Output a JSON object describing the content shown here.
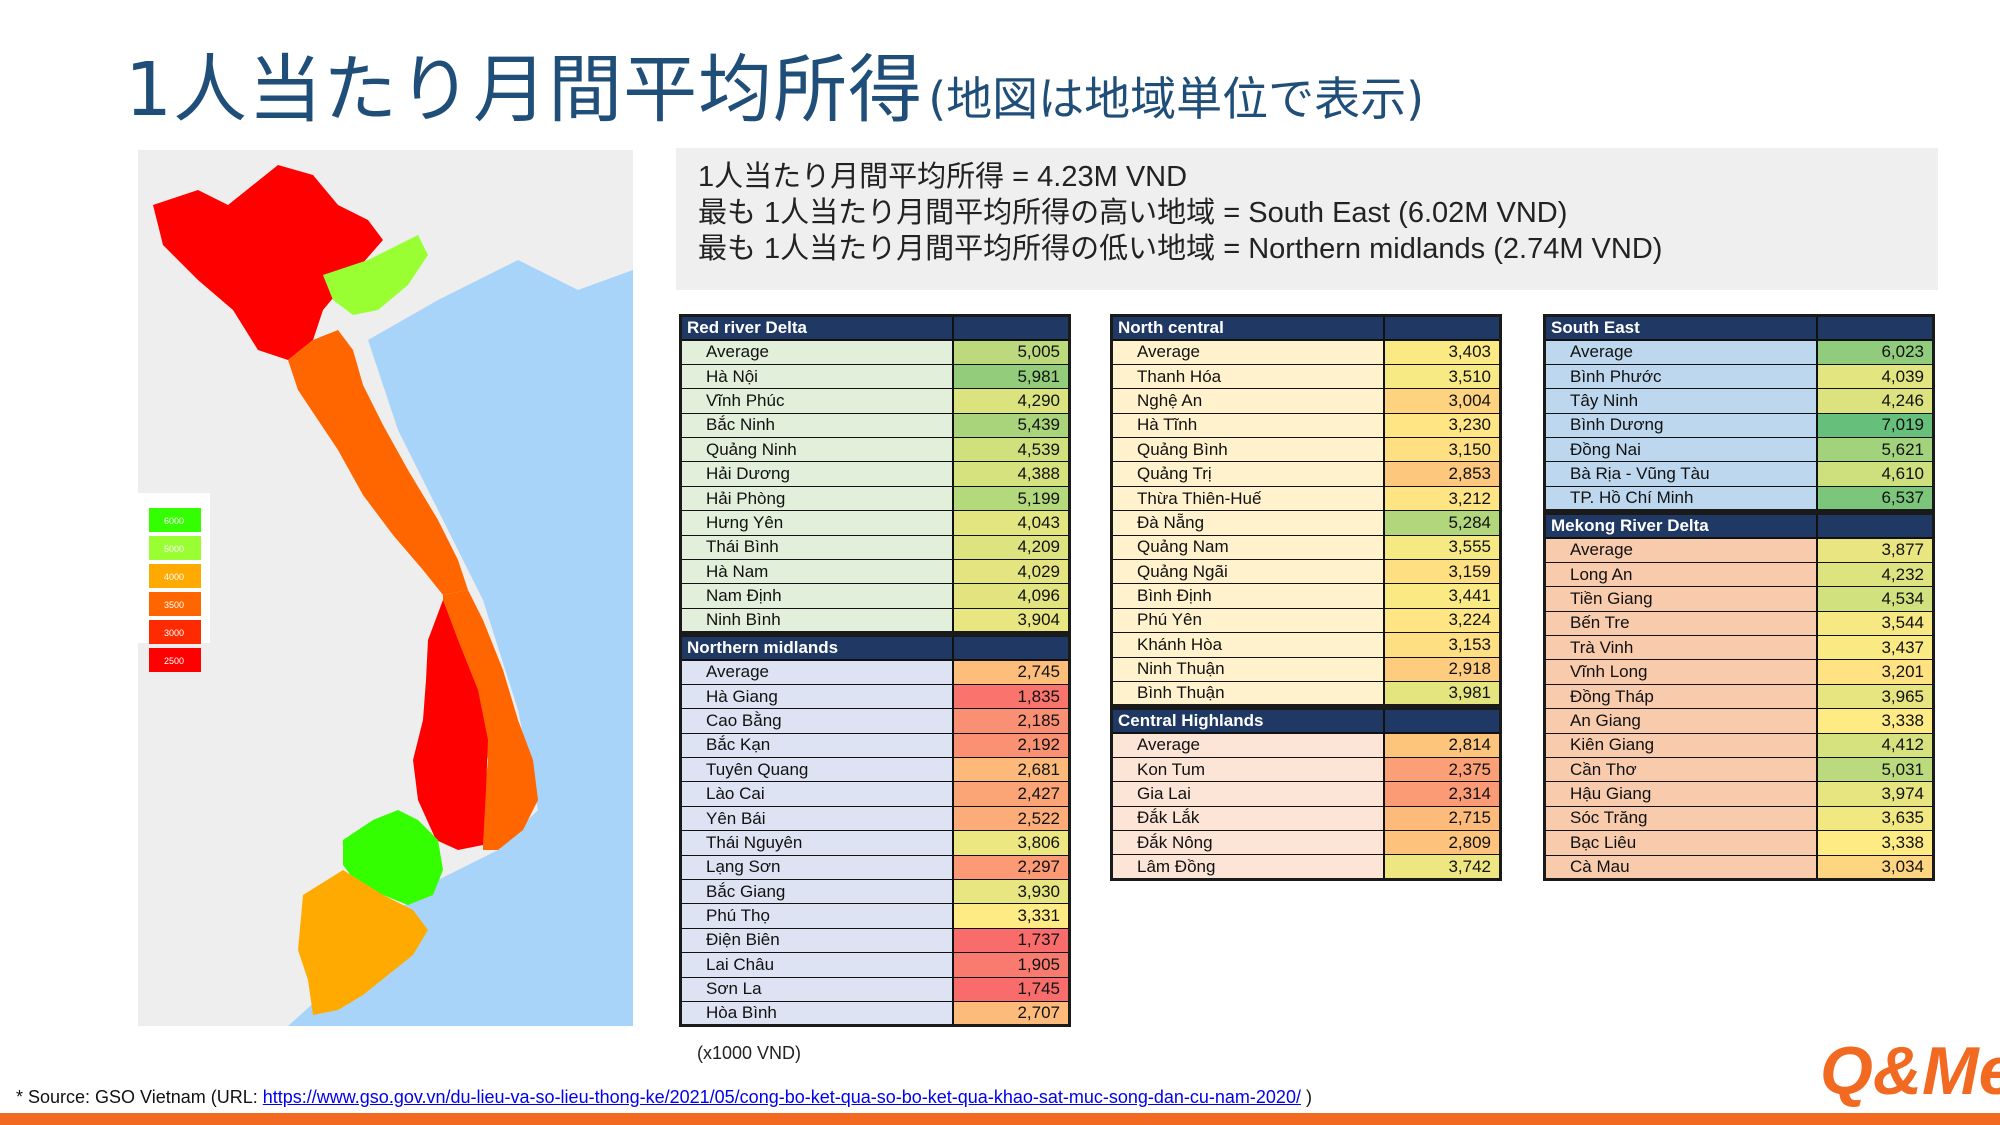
{
  "title": {
    "main": "1人当たり月間平均所得",
    "sub": "(地図は地域単位で表示)"
  },
  "summary": [
    "1人当たり月間平均所得 = 4.23M VND",
    "最も 1人当たり月間平均所得の高い地域 = South East (6.02M VND)",
    "最も 1人当たり月間平均所得の低い地域 = Northern midlands (2.74M VND)"
  ],
  "legend": [
    "6000",
    "5000",
    "4000",
    "3500",
    "3000",
    "2500"
  ],
  "colors": {
    "title": "#1f4e79",
    "header_bg": "#1f3864",
    "accent": "#f26a21",
    "region_red": "#ff0000",
    "region_orange": "#ff6600",
    "region_amber": "#ffaa00",
    "region_lime": "#99ff33",
    "region_green": "#33ff00",
    "sea": "#a8d4fa",
    "land": "#eeeeee"
  },
  "tables": {
    "red_river": {
      "title": "Red river Delta",
      "rows": [
        {
          "name": "Average",
          "value": "5,005"
        },
        {
          "name": "Hà Nội",
          "value": "5,981"
        },
        {
          "name": "Vĩnh Phúc",
          "value": "4,290"
        },
        {
          "name": "Bắc Ninh",
          "value": "5,439"
        },
        {
          "name": "Quảng Ninh",
          "value": "4,539"
        },
        {
          "name": "Hải Dương",
          "value": "4,388"
        },
        {
          "name": "Hải Phòng",
          "value": "5,199"
        },
        {
          "name": "Hưng Yên",
          "value": "4,043"
        },
        {
          "name": "Thái Bình",
          "value": "4,209"
        },
        {
          "name": "Hà Nam",
          "value": "4,029"
        },
        {
          "name": "Nam Định",
          "value": "4,096"
        },
        {
          "name": "Ninh Bình",
          "value": "3,904"
        }
      ]
    },
    "northern_midlands": {
      "title": "Northern midlands",
      "rows": [
        {
          "name": "Average",
          "value": "2,745"
        },
        {
          "name": "Hà Giang",
          "value": "1,835"
        },
        {
          "name": "Cao Bằng",
          "value": "2,185"
        },
        {
          "name": "Bắc Kạn",
          "value": "2,192"
        },
        {
          "name": "Tuyên Quang",
          "value": "2,681"
        },
        {
          "name": "Lào Cai",
          "value": "2,427"
        },
        {
          "name": "Yên Bái",
          "value": "2,522"
        },
        {
          "name": "Thái Nguyên",
          "value": "3,806"
        },
        {
          "name": "Lạng Sơn",
          "value": "2,297"
        },
        {
          "name": "Bắc Giang",
          "value": "3,930"
        },
        {
          "name": "Phú Thọ",
          "value": "3,331"
        },
        {
          "name": "Điện Biên",
          "value": "1,737"
        },
        {
          "name": "Lai Châu",
          "value": "1,905"
        },
        {
          "name": "Sơn La",
          "value": "1,745"
        },
        {
          "name": "Hòa Bình",
          "value": "2,707"
        }
      ]
    },
    "north_central": {
      "title": "North central",
      "rows": [
        {
          "name": "Average",
          "value": "3,403"
        },
        {
          "name": "Thanh Hóa",
          "value": "3,510"
        },
        {
          "name": "Nghệ An",
          "value": "3,004"
        },
        {
          "name": "Hà Tĩnh",
          "value": "3,230"
        },
        {
          "name": "Quảng Bình",
          "value": "3,150"
        },
        {
          "name": "Quảng Trị",
          "value": "2,853"
        },
        {
          "name": "Thừa Thiên-Huế",
          "value": "3,212"
        },
        {
          "name": "Đà Nẵng",
          "value": "5,284"
        },
        {
          "name": "Quảng Nam",
          "value": "3,555"
        },
        {
          "name": "Quảng Ngãi",
          "value": "3,159"
        },
        {
          "name": "Bình Định",
          "value": "3,441"
        },
        {
          "name": "Phú Yên",
          "value": "3,224"
        },
        {
          "name": "Khánh Hòa",
          "value": "3,153"
        },
        {
          "name": "Ninh Thuận",
          "value": "2,918"
        },
        {
          "name": "Bình Thuận",
          "value": "3,981"
        }
      ]
    },
    "central_highlands": {
      "title": "Central Highlands",
      "rows": [
        {
          "name": "Average",
          "value": "2,814"
        },
        {
          "name": "Kon Tum",
          "value": "2,375"
        },
        {
          "name": "Gia Lai",
          "value": "2,314"
        },
        {
          "name": "Đắk Lắk",
          "value": "2,715"
        },
        {
          "name": "Đắk Nông",
          "value": "2,809"
        },
        {
          "name": "Lâm Đồng",
          "value": "3,742"
        }
      ]
    },
    "south_east": {
      "title": "South East",
      "rows": [
        {
          "name": "Average",
          "value": "6,023"
        },
        {
          "name": "Bình Phước",
          "value": "4,039"
        },
        {
          "name": "Tây Ninh",
          "value": "4,246"
        },
        {
          "name": "Bình Dương",
          "value": "7,019"
        },
        {
          "name": "Đồng Nai",
          "value": "5,621"
        },
        {
          "name": "Bà Rịa - Vũng Tàu",
          "value": "4,610"
        },
        {
          "name": "TP. Hồ Chí Minh",
          "value": "6,537"
        }
      ]
    },
    "mekong": {
      "title": "Mekong River Delta",
      "rows": [
        {
          "name": "Average",
          "value": "3,877"
        },
        {
          "name": "Long An",
          "value": "4,232"
        },
        {
          "name": "Tiền Giang",
          "value": "4,534"
        },
        {
          "name": "Bến Tre",
          "value": "3,544"
        },
        {
          "name": "Trà Vinh",
          "value": "3,437"
        },
        {
          "name": "Vĩnh Long",
          "value": "3,201"
        },
        {
          "name": "Đồng Tháp",
          "value": "3,965"
        },
        {
          "name": "An Giang",
          "value": "3,338"
        },
        {
          "name": "Kiên Giang",
          "value": "4,412"
        },
        {
          "name": "Cần Thơ",
          "value": "5,031"
        },
        {
          "name": "Hậu Giang",
          "value": "3,974"
        },
        {
          "name": "Sóc Trăng",
          "value": "3,635"
        },
        {
          "name": "Bạc Liêu",
          "value": "3,338"
        },
        {
          "name": "Cà Mau",
          "value": "3,034"
        }
      ]
    }
  },
  "unit_note": "(x1000 VND)",
  "source": {
    "prefix": "* Source: GSO Vietnam (URL: ",
    "url": "https://www.gso.gov.vn/du-lieu-va-so-lieu-thong-ke/2021/05/cong-bo-ket-qua-so-bo-ket-qua-khao-sat-muc-song-dan-cu-nam-2020/",
    "suffix": " )"
  },
  "logo_text": "Q&Me"
}
